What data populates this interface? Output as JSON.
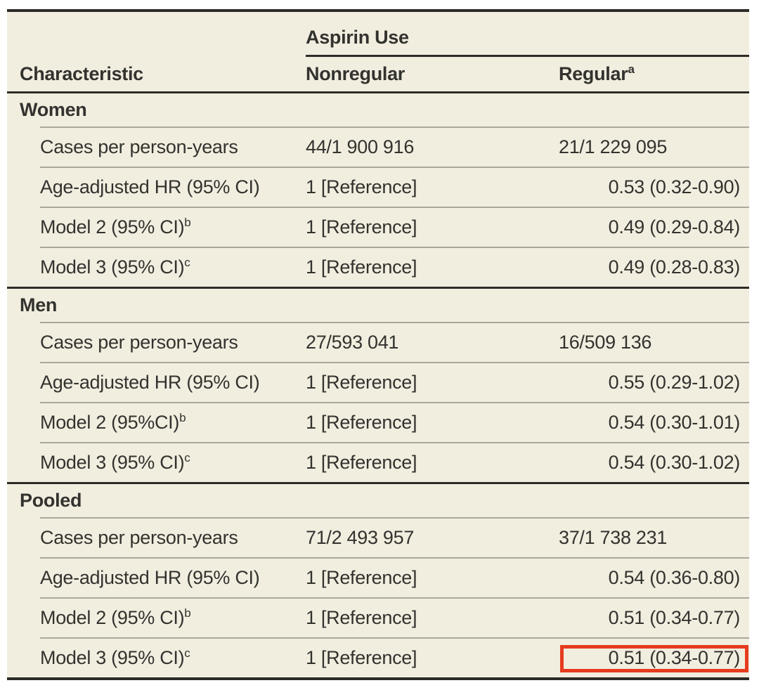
{
  "table": {
    "spanner_header": "Aspirin Use",
    "col_characteristic": "Characteristic",
    "col_nonregular": "Nonregular",
    "col_regular": "Regular",
    "col_regular_sup": "a",
    "sections": [
      {
        "label": "Women",
        "rows": [
          {
            "label": "Cases per person-years",
            "sup": "",
            "nonregular": "44/1 900 916",
            "regular": "21/1 229 095"
          },
          {
            "label": "Age-adjusted HR (95% CI)",
            "sup": "",
            "nonregular": "1 [Reference]",
            "regular": "0.53 (0.32-0.90)"
          },
          {
            "label": "Model 2 (95% CI)",
            "sup": "b",
            "nonregular": "1 [Reference]",
            "regular": "0.49 (0.29-0.84)"
          },
          {
            "label": "Model 3 (95% CI)",
            "sup": "c",
            "nonregular": "1 [Reference]",
            "regular": "0.49 (0.28-0.83)"
          }
        ]
      },
      {
        "label": "Men",
        "rows": [
          {
            "label": "Cases per person-years",
            "sup": "",
            "nonregular": "27/593 041",
            "regular": "16/509 136"
          },
          {
            "label": "Age-adjusted HR (95% CI)",
            "sup": "",
            "nonregular": "1 [Reference]",
            "regular": "0.55 (0.29-1.02)"
          },
          {
            "label": "Model 2 (95%CI)",
            "sup": "b",
            "nonregular": "1 [Reference]",
            "regular": "0.54 (0.30-1.01)"
          },
          {
            "label": "Model 3 (95% CI)",
            "sup": "c",
            "nonregular": "1 [Reference]",
            "regular": "0.54 (0.30-1.02)"
          }
        ]
      },
      {
        "label": "Pooled",
        "rows": [
          {
            "label": "Cases per person-years",
            "sup": "",
            "nonregular": "71/2 493 957",
            "regular": "37/1 738 231"
          },
          {
            "label": "Age-adjusted HR (95% CI)",
            "sup": "",
            "nonregular": "1 [Reference]",
            "regular": "0.54 (0.36-0.80)"
          },
          {
            "label": "Model 2 (95% CI)",
            "sup": "b",
            "nonregular": "1 [Reference]",
            "regular": "0.51 (0.34-0.77)"
          },
          {
            "label": "Model 3 (95% CI)",
            "sup": "c",
            "nonregular": "1 [Reference]",
            "regular": "0.51 (0.34-0.77)",
            "highlighted": true
          }
        ]
      }
    ],
    "colors": {
      "page_background": "#ffffff",
      "table_background": "#f1eee0",
      "text": "#33322e",
      "thick_rule": "#2c2b27",
      "thin_rule": "#a9a79b",
      "highlight_box": "#e63b1f"
    }
  }
}
